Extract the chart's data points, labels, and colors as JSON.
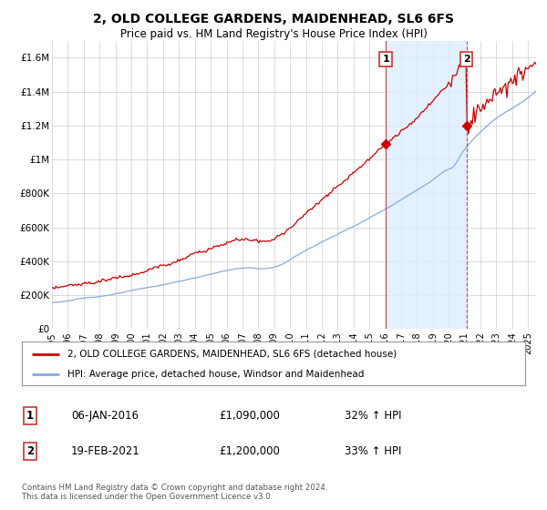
{
  "title": "2, OLD COLLEGE GARDENS, MAIDENHEAD, SL6 6FS",
  "subtitle": "Price paid vs. HM Land Registry's House Price Index (HPI)",
  "ylabel_ticks": [
    "£0",
    "£200K",
    "£400K",
    "£600K",
    "£800K",
    "£1M",
    "£1.2M",
    "£1.4M",
    "£1.6M"
  ],
  "ylim": [
    0,
    1700000
  ],
  "ytick_vals": [
    0,
    200000,
    400000,
    600000,
    800000,
    1000000,
    1200000,
    1400000,
    1600000
  ],
  "hpi_color": "#88aadd",
  "price_color": "#cc0000",
  "vline_color": "#cc3333",
  "shade_color": "#ddeeff",
  "sale1_year": 2016.03,
  "sale2_year": 2021.12,
  "sale1_price": 1090000,
  "sale2_price": 1200000,
  "legend_price_label": "2, OLD COLLEGE GARDENS, MAIDENHEAD, SL6 6FS (detached house)",
  "legend_hpi_label": "HPI: Average price, detached house, Windsor and Maidenhead",
  "annotation1_date": "06-JAN-2016",
  "annotation1_price": "£1,090,000",
  "annotation1_hpi": "32% ↑ HPI",
  "annotation2_date": "19-FEB-2021",
  "annotation2_price": "£1,200,000",
  "annotation2_hpi": "33% ↑ HPI",
  "footer": "Contains HM Land Registry data © Crown copyright and database right 2024.\nThis data is licensed under the Open Government Licence v3.0.",
  "fig_bg_color": "#ffffff",
  "plot_bg_color": "#ffffff",
  "xlim_start": 1995,
  "xlim_end": 2025.5
}
